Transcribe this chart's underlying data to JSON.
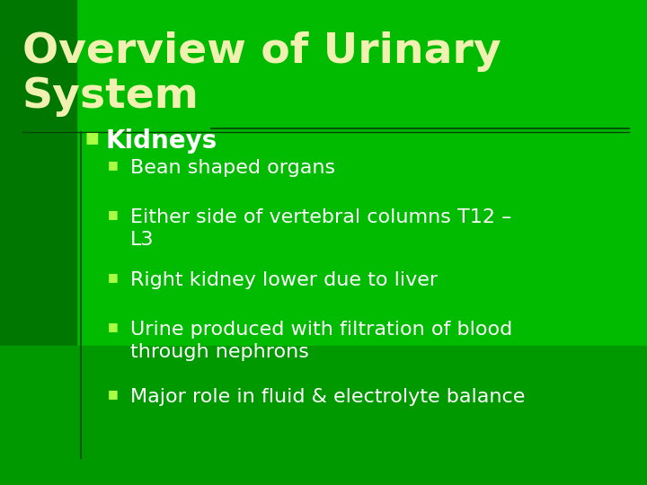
{
  "title_line1": "Overview of Urinary",
  "title_line2": "System",
  "title_color": "#f0f0b0",
  "title_fontsize": 34,
  "background_color": "#00bb00",
  "bg_left_strip_color": "#007700",
  "bg_bottom_panel_color": "#009900",
  "section_label": "Kidneys",
  "section_color": "#ffffff",
  "section_fontsize": 20,
  "bullet_color": "#aaff44",
  "bullet_items": [
    "Bean shaped organs",
    "Either side of vertebral columns T12 –\nL3",
    "Right kidney lower due to liver",
    "Urine produced with filtration of blood\nthrough nephrons",
    "Major role in fluid & electrolyte balance"
  ],
  "bullet_fontsize": 16,
  "bullet_text_color": "#ffffff",
  "line_color": "#005500",
  "vline_color": "#005500"
}
